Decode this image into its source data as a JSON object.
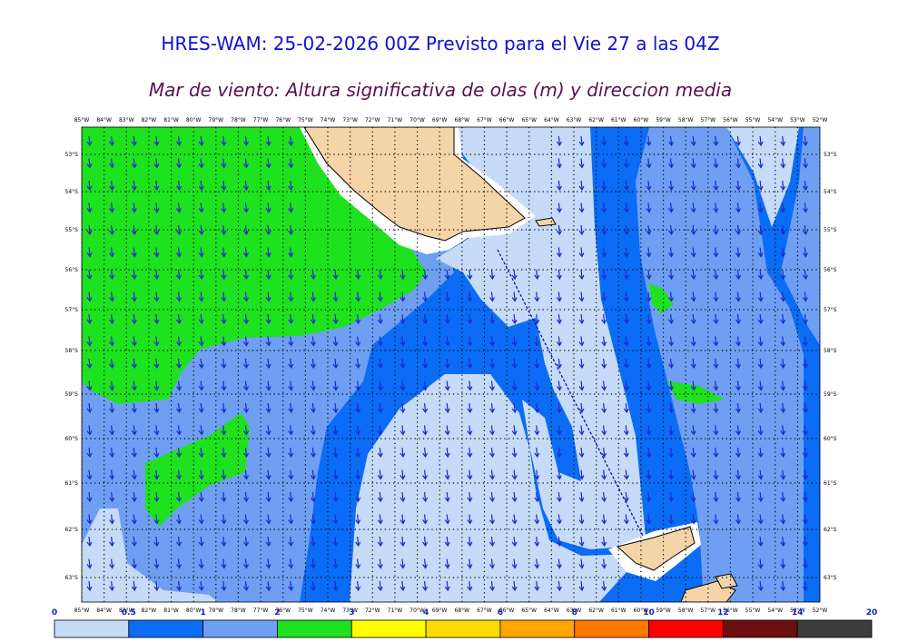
{
  "header": {
    "title": "HRES-WAM: 25-02-2026 00Z Previsto para el Vie 27 a las 04Z",
    "subtitle": "Mar de viento: Altura significativa de olas (m) y direccion media"
  },
  "map": {
    "lon_labels": [
      "85°W",
      "84°W",
      "83°W",
      "82°W",
      "81°W",
      "80°W",
      "79°W",
      "78°W",
      "77°W",
      "76°W",
      "75°W",
      "74°W",
      "73°W",
      "72°W",
      "71°W",
      "70°W",
      "69°W",
      "68°W",
      "67°W",
      "66°W",
      "65°W",
      "64°W",
      "63°W",
      "62°W",
      "61°W",
      "60°W",
      "59°W",
      "58°W",
      "57°W",
      "56°W",
      "55°W",
      "54°W",
      "53°W",
      "52°W"
    ],
    "lat_labels": [
      "53°S",
      "54°S",
      "55°S",
      "56°S",
      "57°S",
      "58°S",
      "59°S",
      "60°S",
      "61°S",
      "62°S",
      "63°S"
    ]
  },
  "legend": {
    "bounds": [
      "0",
      "0.5",
      "1",
      "2",
      "3",
      "4",
      "6",
      "8",
      "10",
      "12",
      "14",
      "20"
    ],
    "colors": [
      "#c5dbf7",
      "#0b6cf5",
      "#6f9ff2",
      "#1fe21f",
      "#ffff00",
      "#ffdb00",
      "#ffa500",
      "#ff7800",
      "#ff0000",
      "#6b0f0f",
      "#3c3c3c"
    ]
  }
}
